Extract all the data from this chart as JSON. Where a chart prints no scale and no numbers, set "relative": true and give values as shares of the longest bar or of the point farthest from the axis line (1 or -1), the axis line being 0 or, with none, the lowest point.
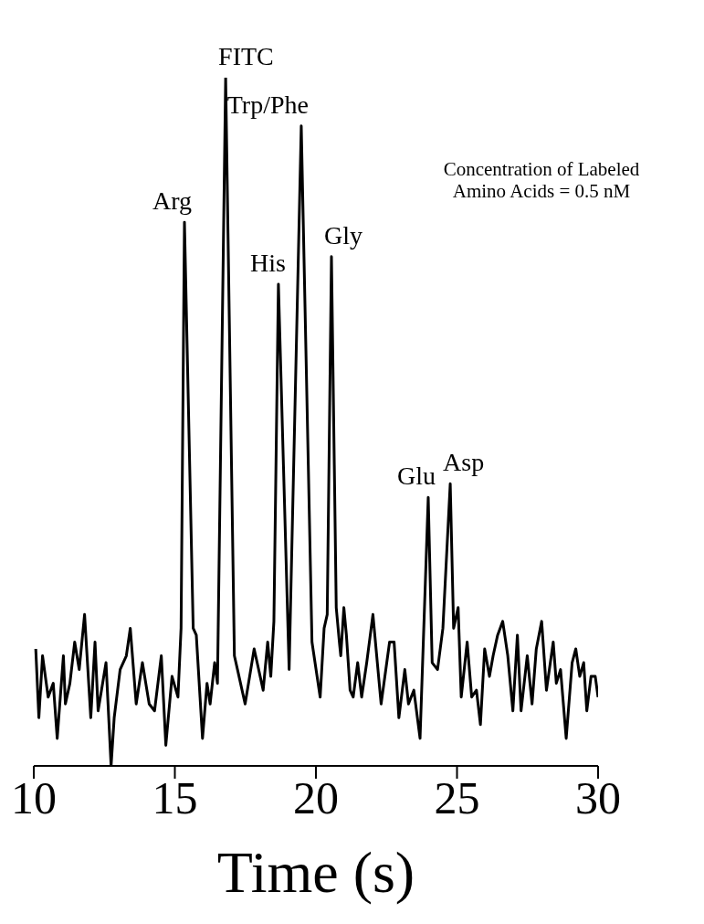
{
  "chart_data": {
    "type": "line",
    "xlabel": "Time (s)",
    "relative": true,
    "color": "#000000",
    "xlim": [
      10,
      30
    ],
    "xticks": [
      10,
      15,
      20,
      25,
      30
    ],
    "x": [
      10.07,
      10.18,
      10.31,
      10.51,
      10.69,
      10.83,
      11.05,
      11.12,
      11.28,
      11.45,
      11.61,
      11.8,
      12.02,
      12.17,
      12.28,
      12.56,
      12.74,
      12.85,
      13.06,
      13.28,
      13.42,
      13.63,
      13.85,
      14.09,
      14.28,
      14.52,
      14.68,
      14.9,
      15.11,
      15.22,
      15.34,
      15.65,
      15.76,
      15.98,
      16.14,
      16.25,
      16.41,
      16.51,
      16.8,
      17.11,
      17.22,
      17.49,
      17.81,
      18.13,
      18.29,
      18.4,
      18.51,
      18.67,
      19.05,
      19.48,
      19.86,
      20.15,
      20.29,
      20.4,
      20.55,
      20.72,
      20.83,
      20.88,
      20.99,
      21.08,
      21.21,
      21.32,
      21.48,
      21.62,
      21.8,
      22.02,
      22.31,
      22.61,
      22.77,
      22.94,
      23.15,
      23.28,
      23.47,
      23.69,
      23.98,
      24.12,
      24.31,
      24.5,
      24.76,
      24.88,
      25.04,
      25.15,
      25.36,
      25.52,
      25.69,
      25.83,
      25.98,
      26.15,
      26.28,
      26.44,
      26.62,
      26.8,
      26.98,
      27.14,
      27.27,
      27.49,
      27.66,
      27.81,
      28.0,
      28.17,
      28.41,
      28.52,
      28.67,
      28.87,
      29.08,
      29.21,
      29.35,
      29.49,
      29.6,
      29.75,
      29.9,
      30.0
    ],
    "values": [
      0.17,
      0.07,
      0.16,
      0.1,
      0.12,
      0.04,
      0.16,
      0.09,
      0.12,
      0.18,
      0.14,
      0.22,
      0.07,
      0.18,
      0.08,
      0.15,
      0.0,
      0.07,
      0.14,
      0.16,
      0.2,
      0.09,
      0.15,
      0.09,
      0.08,
      0.16,
      0.03,
      0.13,
      0.1,
      0.2,
      0.79,
      0.2,
      0.19,
      0.04,
      0.12,
      0.09,
      0.15,
      0.12,
      1.0,
      0.16,
      0.14,
      0.09,
      0.17,
      0.11,
      0.18,
      0.13,
      0.21,
      0.7,
      0.14,
      0.93,
      0.18,
      0.1,
      0.2,
      0.22,
      0.74,
      0.23,
      0.18,
      0.16,
      0.23,
      0.19,
      0.11,
      0.1,
      0.15,
      0.1,
      0.15,
      0.22,
      0.09,
      0.18,
      0.18,
      0.07,
      0.14,
      0.09,
      0.11,
      0.04,
      0.39,
      0.15,
      0.14,
      0.2,
      0.41,
      0.2,
      0.23,
      0.1,
      0.18,
      0.1,
      0.11,
      0.06,
      0.17,
      0.13,
      0.16,
      0.19,
      0.21,
      0.16,
      0.08,
      0.19,
      0.08,
      0.16,
      0.09,
      0.17,
      0.21,
      0.11,
      0.18,
      0.12,
      0.14,
      0.04,
      0.15,
      0.17,
      0.13,
      0.15,
      0.08,
      0.13,
      0.13,
      0.1
    ],
    "annotations": [
      {
        "text": "Arg",
        "x": 15.34,
        "y": 0.79
      },
      {
        "text": "FITC",
        "x": 16.8,
        "y": 1.0
      },
      {
        "text": "His",
        "x": 18.67,
        "y": 0.7
      },
      {
        "text": "Trp/Phe",
        "x": 19.48,
        "y": 0.93
      },
      {
        "text": "Gly",
        "x": 20.55,
        "y": 0.74
      },
      {
        "text": "Glu",
        "x": 23.98,
        "y": 0.39
      },
      {
        "text": "Asp",
        "x": 24.76,
        "y": 0.41
      },
      "Concentration of Labeled\nAmino Acids = 0.5 nM"
    ]
  }
}
